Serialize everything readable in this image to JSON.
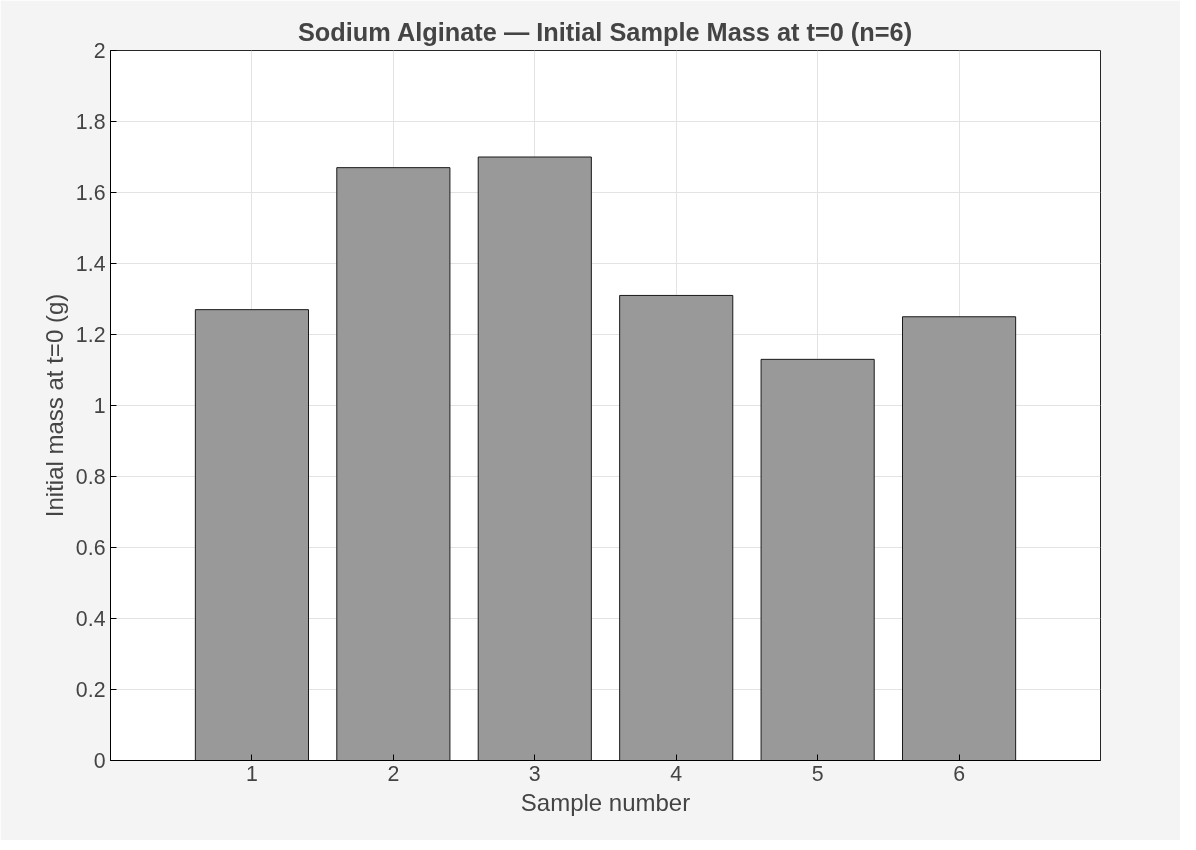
{
  "chart_data": {
    "type": "bar",
    "title": "Sodium Alginate — Initial Sample Mass at t=0 (n=6)",
    "xlabel": "Sample number",
    "ylabel": "Initial mass at t=0 (g)",
    "x": [
      1,
      2,
      3,
      4,
      5,
      6
    ],
    "series": [
      {
        "color": "#999999",
        "values": [
          1.27,
          1.67,
          1.7,
          1.31,
          1.13,
          1.25
        ]
      }
    ],
    "xlim": [
      0,
      7
    ],
    "xticks": [
      1,
      2,
      3,
      4,
      5,
      6
    ],
    "ylim": [
      0,
      2
    ],
    "yticks": [
      0,
      0.2,
      0.4,
      0.6,
      0.8,
      1,
      1.2,
      1.4,
      1.6,
      1.8,
      2
    ],
    "grid": true
  }
}
